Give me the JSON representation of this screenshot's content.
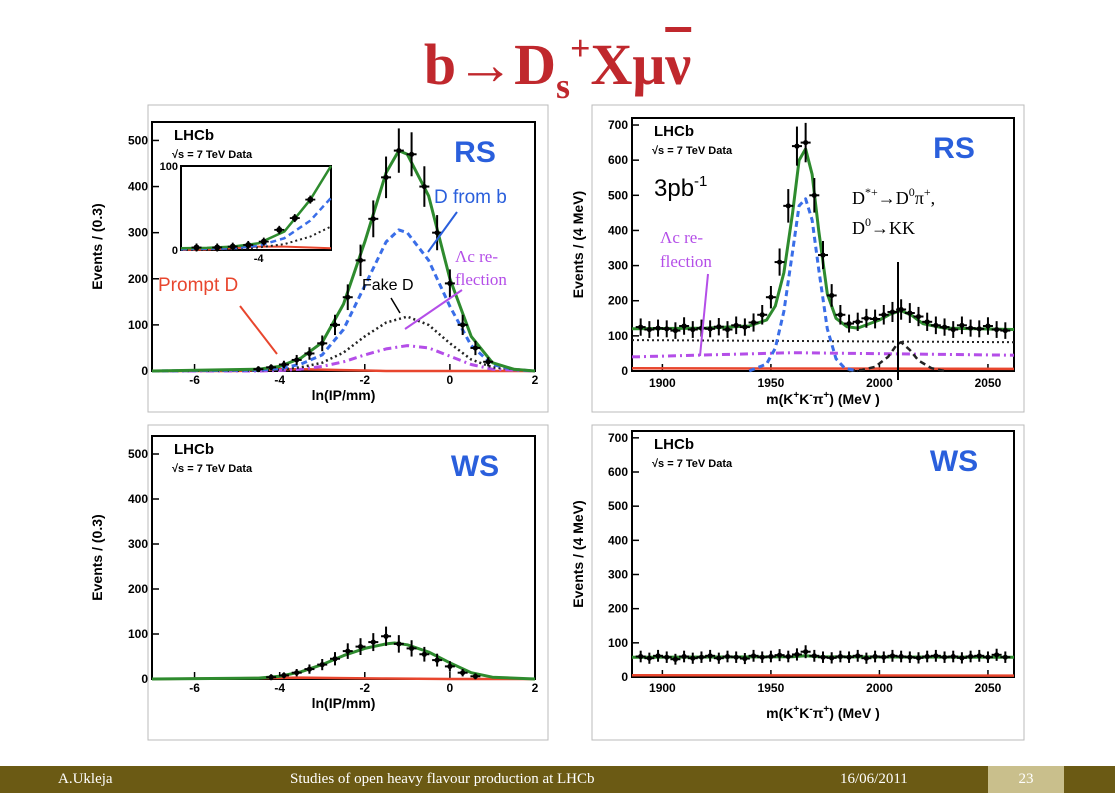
{
  "slide": {
    "title_main": "b→D",
    "title_sub": "s",
    "title_sup": "+",
    "title_rest": "Xμ",
    "title_nu": "ν",
    "footer": {
      "author": "A.Ukleja",
      "title": "Studies of open heavy flavour production at LHCb",
      "date": "16/06/2011",
      "page": "23"
    }
  },
  "colors": {
    "title": "#c0282d",
    "fit_total": "#2e8b2e",
    "d_from_b": "#3a6ee8",
    "fake_d": "#222222",
    "lambda_c": "#b44ee8",
    "prompt_d": "#e8462e",
    "label_blue": "#2a5fdc",
    "footer_bg": "#6b5a14",
    "page_bg": "#c9bf8c"
  },
  "chart_data": [
    {
      "type": "line",
      "panel": "ip-rs",
      "experiment": "LHCb",
      "energy_label": "√s = 7 TeV Data",
      "tag": "RS",
      "xlabel": "ln(IP/mm)",
      "ylabel": "Events / (0.3)",
      "xlim": [
        -7,
        2
      ],
      "ylim": [
        0,
        540
      ],
      "xticks": [
        -6,
        -4,
        -2,
        0,
        2
      ],
      "yticks": [
        0,
        100,
        200,
        300,
        400,
        500
      ],
      "data_points": {
        "x": [
          -4.5,
          -4.2,
          -3.9,
          -3.6,
          -3.3,
          -3.0,
          -2.7,
          -2.4,
          -2.1,
          -1.8,
          -1.5,
          -1.2,
          -0.9,
          -0.6,
          -0.3,
          0.0,
          0.3,
          0.6,
          0.9
        ],
        "y": [
          4,
          8,
          14,
          24,
          38,
          60,
          100,
          160,
          240,
          330,
          420,
          478,
          470,
          400,
          300,
          190,
          100,
          50,
          20
        ]
      },
      "series": [
        {
          "name": "total",
          "x": [
            -7,
            -4.5,
            -4,
            -3.5,
            -3,
            -2.5,
            -2,
            -1.5,
            -1.2,
            -1,
            -0.5,
            0,
            0.5,
            1,
            1.5,
            2
          ],
          "y": [
            0,
            4,
            10,
            28,
            62,
            145,
            280,
            430,
            478,
            470,
            380,
            200,
            75,
            18,
            4,
            0
          ]
        },
        {
          "name": "D from b",
          "x": [
            -7,
            -4.5,
            -4,
            -3.5,
            -3,
            -2.5,
            -2,
            -1.5,
            -1.2,
            -1,
            -0.5,
            0,
            0.5,
            1,
            1.5,
            2
          ],
          "y": [
            0,
            2,
            5,
            15,
            35,
            90,
            185,
            280,
            306,
            300,
            240,
            140,
            55,
            14,
            3,
            0
          ]
        },
        {
          "name": "Fake D",
          "x": [
            -7,
            -4.5,
            -4,
            -3.5,
            -3,
            -2.5,
            -2,
            -1.5,
            -1,
            -0.5,
            0,
            0.5,
            1,
            2
          ],
          "y": [
            0,
            1,
            3,
            8,
            18,
            40,
            75,
            105,
            118,
            100,
            60,
            25,
            8,
            0
          ]
        },
        {
          "name": "Λc reflection",
          "x": [
            -7,
            -4.5,
            -4,
            -3.5,
            -3,
            -2.5,
            -2,
            -1.5,
            -1,
            -0.5,
            0,
            0.5,
            1,
            2
          ],
          "y": [
            0,
            0,
            1,
            4,
            10,
            20,
            35,
            48,
            55,
            50,
            32,
            14,
            4,
            0
          ]
        },
        {
          "name": "Prompt D",
          "x": [
            -7,
            -5,
            -4.5,
            -4,
            -3.5,
            -3,
            -2.5,
            -2,
            -1.5,
            -1,
            0,
            2
          ],
          "y": [
            0,
            0,
            2,
            4,
            4,
            3,
            2,
            1,
            0,
            0,
            0,
            0
          ]
        }
      ],
      "inset": {
        "xlim": [
          -5.5,
          -2.6
        ],
        "ylim": [
          0,
          100
        ],
        "xticks": [
          -4
        ],
        "yticks": [
          0,
          100
        ],
        "data_points": {
          "x": [
            -5.2,
            -4.8,
            -4.5,
            -4.2,
            -3.9,
            -3.6,
            -3.3,
            -3.0
          ],
          "y": [
            3,
            3,
            4,
            6,
            10,
            24,
            38,
            60
          ]
        },
        "total": {
          "x": [
            -5.5,
            -5,
            -4.5,
            -4,
            -3.5,
            -3,
            -2.6
          ],
          "y": [
            2,
            2.5,
            4,
            8,
            22,
            60,
            100
          ]
        },
        "d_from_b": {
          "x": [
            -5.5,
            -5,
            -4.5,
            -4,
            -3.5,
            -3,
            -2.6
          ],
          "y": [
            1,
            1.5,
            2,
            5,
            14,
            35,
            62
          ]
        },
        "fake_d": {
          "x": [
            -5.5,
            -5,
            -4.5,
            -4,
            -3.5,
            -3,
            -2.6
          ],
          "y": [
            0,
            0.5,
            1,
            3,
            7,
            16,
            28
          ]
        },
        "prompt_d": {
          "x": [
            -5.5,
            -5,
            -4.5,
            -4,
            -3.5,
            -3,
            -2.6
          ],
          "y": [
            0,
            0.5,
            2,
            4,
            4,
            3,
            2
          ]
        }
      },
      "annotations": {
        "prompt_d": "Prompt D",
        "d_from_b": "D from b",
        "fake_d": "Fake D",
        "lambda_c_line1": "Λc re-",
        "lambda_c_line2": "flection"
      }
    },
    {
      "type": "line",
      "panel": "mass-rs",
      "experiment": "LHCb",
      "energy_label": "√s = 7 TeV Data",
      "tag": "RS",
      "luminosity": "3pb-1",
      "xlabel": "m(K+K-π+) (MeV)",
      "ylabel": "Events / (4 MeV)",
      "xlim": [
        1886,
        2062
      ],
      "ylim": [
        0,
        720
      ],
      "xticks": [
        1900,
        1950,
        2000,
        2050
      ],
      "yticks": [
        0,
        100,
        200,
        300,
        400,
        500,
        600,
        700
      ],
      "data_points": {
        "x": [
          1890,
          1894,
          1898,
          1902,
          1906,
          1910,
          1914,
          1918,
          1922,
          1926,
          1930,
          1934,
          1938,
          1942,
          1946,
          1950,
          1954,
          1958,
          1962,
          1966,
          1970,
          1974,
          1978,
          1982,
          1986,
          1990,
          1994,
          1998,
          2002,
          2006,
          2010,
          2014,
          2018,
          2022,
          2026,
          2030,
          2034,
          2038,
          2042,
          2046,
          2050,
          2054,
          2058
        ],
        "y": [
          125,
          118,
          122,
          120,
          115,
          128,
          118,
          122,
          120,
          126,
          118,
          130,
          125,
          138,
          160,
          210,
          310,
          470,
          640,
          650,
          500,
          330,
          215,
          160,
          135,
          140,
          150,
          148,
          160,
          168,
          175,
          165,
          155,
          140,
          130,
          125,
          118,
          130,
          122,
          120,
          128,
          118,
          115
        ]
      },
      "series": [
        {
          "name": "total",
          "x": [
            1886,
            1920,
            1940,
            1948,
            1952,
            1956,
            1960,
            1963,
            1966,
            1969,
            1972,
            1976,
            1980,
            1985,
            1990,
            2000,
            2005,
            2010,
            2015,
            2020,
            2030,
            2062
          ],
          "y": [
            120,
            122,
            128,
            145,
            185,
            280,
            450,
            600,
            632,
            560,
            400,
            220,
            150,
            126,
            122,
            145,
            162,
            172,
            158,
            135,
            122,
            118
          ]
        },
        {
          "name": "D from b",
          "x": [
            1940,
            1948,
            1952,
            1956,
            1960,
            1963,
            1966,
            1969,
            1972,
            1976,
            1980,
            1984,
            1990
          ],
          "y": [
            0,
            20,
            65,
            170,
            340,
            470,
            490,
            430,
            290,
            120,
            35,
            8,
            0
          ]
        },
        {
          "name": "D*+ reflection",
          "x": [
            1986,
            1992,
            1998,
            2004,
            2008,
            2010,
            2014,
            2018,
            2024,
            2030
          ],
          "y": [
            0,
            3,
            12,
            40,
            75,
            82,
            60,
            30,
            8,
            0
          ]
        },
        {
          "name": "combinatorial",
          "x": [
            1886,
            2062
          ],
          "y": [
            88,
            82
          ]
        },
        {
          "name": "Λc reflection",
          "x": [
            1886,
            1960,
            2062
          ],
          "y": [
            40,
            52,
            45
          ]
        },
        {
          "name": "Prompt D",
          "x": [
            1886,
            2062
          ],
          "y": [
            8,
            6
          ]
        }
      ],
      "annotations": {
        "dstar_line1": "D*+→D0π+,",
        "dstar_line2": "D0→KK",
        "lambda_c_line1": "Λc re-",
        "lambda_c_line2": "flection"
      }
    },
    {
      "type": "line",
      "panel": "ip-ws",
      "experiment": "LHCb",
      "energy_label": "√s = 7 TeV Data",
      "tag": "WS",
      "xlabel": "ln(IP/mm)",
      "ylabel": "Events / (0.3)",
      "xlim": [
        -7,
        2
      ],
      "ylim": [
        0,
        540
      ],
      "xticks": [
        -6,
        -4,
        -2,
        0,
        2
      ],
      "yticks": [
        0,
        100,
        200,
        300,
        400,
        500
      ],
      "data_points": {
        "x": [
          -4.2,
          -3.9,
          -3.6,
          -3.3,
          -3.0,
          -2.7,
          -2.4,
          -2.1,
          -1.8,
          -1.5,
          -1.2,
          -0.9,
          -0.6,
          -0.3,
          0.0,
          0.3,
          0.6
        ],
        "y": [
          4,
          8,
          14,
          22,
          32,
          45,
          62,
          72,
          82,
          95,
          78,
          68,
          55,
          42,
          28,
          14,
          6
        ]
      },
      "series": [
        {
          "name": "total",
          "x": [
            -7,
            -4.5,
            -4,
            -3.5,
            -3,
            -2.5,
            -2,
            -1.5,
            -1.3,
            -1,
            -0.5,
            0,
            0.5,
            1,
            2
          ],
          "y": [
            0,
            2,
            6,
            16,
            32,
            52,
            68,
            78,
            80,
            76,
            60,
            36,
            14,
            4,
            0
          ]
        },
        {
          "name": "Prompt D",
          "x": [
            -7,
            -4.5,
            -3.5,
            -2.5,
            -1.5,
            0,
            2
          ],
          "y": [
            0,
            2,
            3,
            2,
            1,
            0,
            0
          ]
        }
      ]
    },
    {
      "type": "line",
      "panel": "mass-ws",
      "experiment": "LHCb",
      "energy_label": "√s = 7 TeV Data",
      "tag": "WS",
      "xlabel": "m(K+K-π+) (MeV)",
      "ylabel": "Events / (4 MeV)",
      "xlim": [
        1886,
        2062
      ],
      "ylim": [
        0,
        720
      ],
      "xticks": [
        1900,
        1950,
        2000,
        2050
      ],
      "yticks": [
        0,
        100,
        200,
        300,
        400,
        500,
        600,
        700
      ],
      "data_points": {
        "x": [
          1890,
          1894,
          1898,
          1902,
          1906,
          1910,
          1914,
          1918,
          1922,
          1926,
          1930,
          1934,
          1938,
          1942,
          1946,
          1950,
          1954,
          1958,
          1962,
          1966,
          1970,
          1974,
          1978,
          1982,
          1986,
          1990,
          1994,
          1998,
          2002,
          2006,
          2010,
          2014,
          2018,
          2022,
          2026,
          2030,
          2034,
          2038,
          2042,
          2046,
          2050,
          2054,
          2058
        ],
        "y": [
          60,
          55,
          62,
          58,
          52,
          60,
          55,
          58,
          62,
          55,
          60,
          58,
          54,
          62,
          58,
          60,
          64,
          60,
          66,
          74,
          62,
          58,
          56,
          60,
          58,
          62,
          55,
          60,
          58,
          62,
          60,
          58,
          56,
          60,
          62,
          58,
          60,
          56,
          60,
          62,
          58,
          65,
          58
        ]
      },
      "series": [
        {
          "name": "total",
          "x": [
            1886,
            1960,
            1966,
            1972,
            2062
          ],
          "y": [
            58,
            59,
            62,
            59,
            58
          ]
        },
        {
          "name": "Prompt D",
          "x": [
            1886,
            2062
          ],
          "y": [
            5,
            4
          ]
        }
      ]
    }
  ]
}
